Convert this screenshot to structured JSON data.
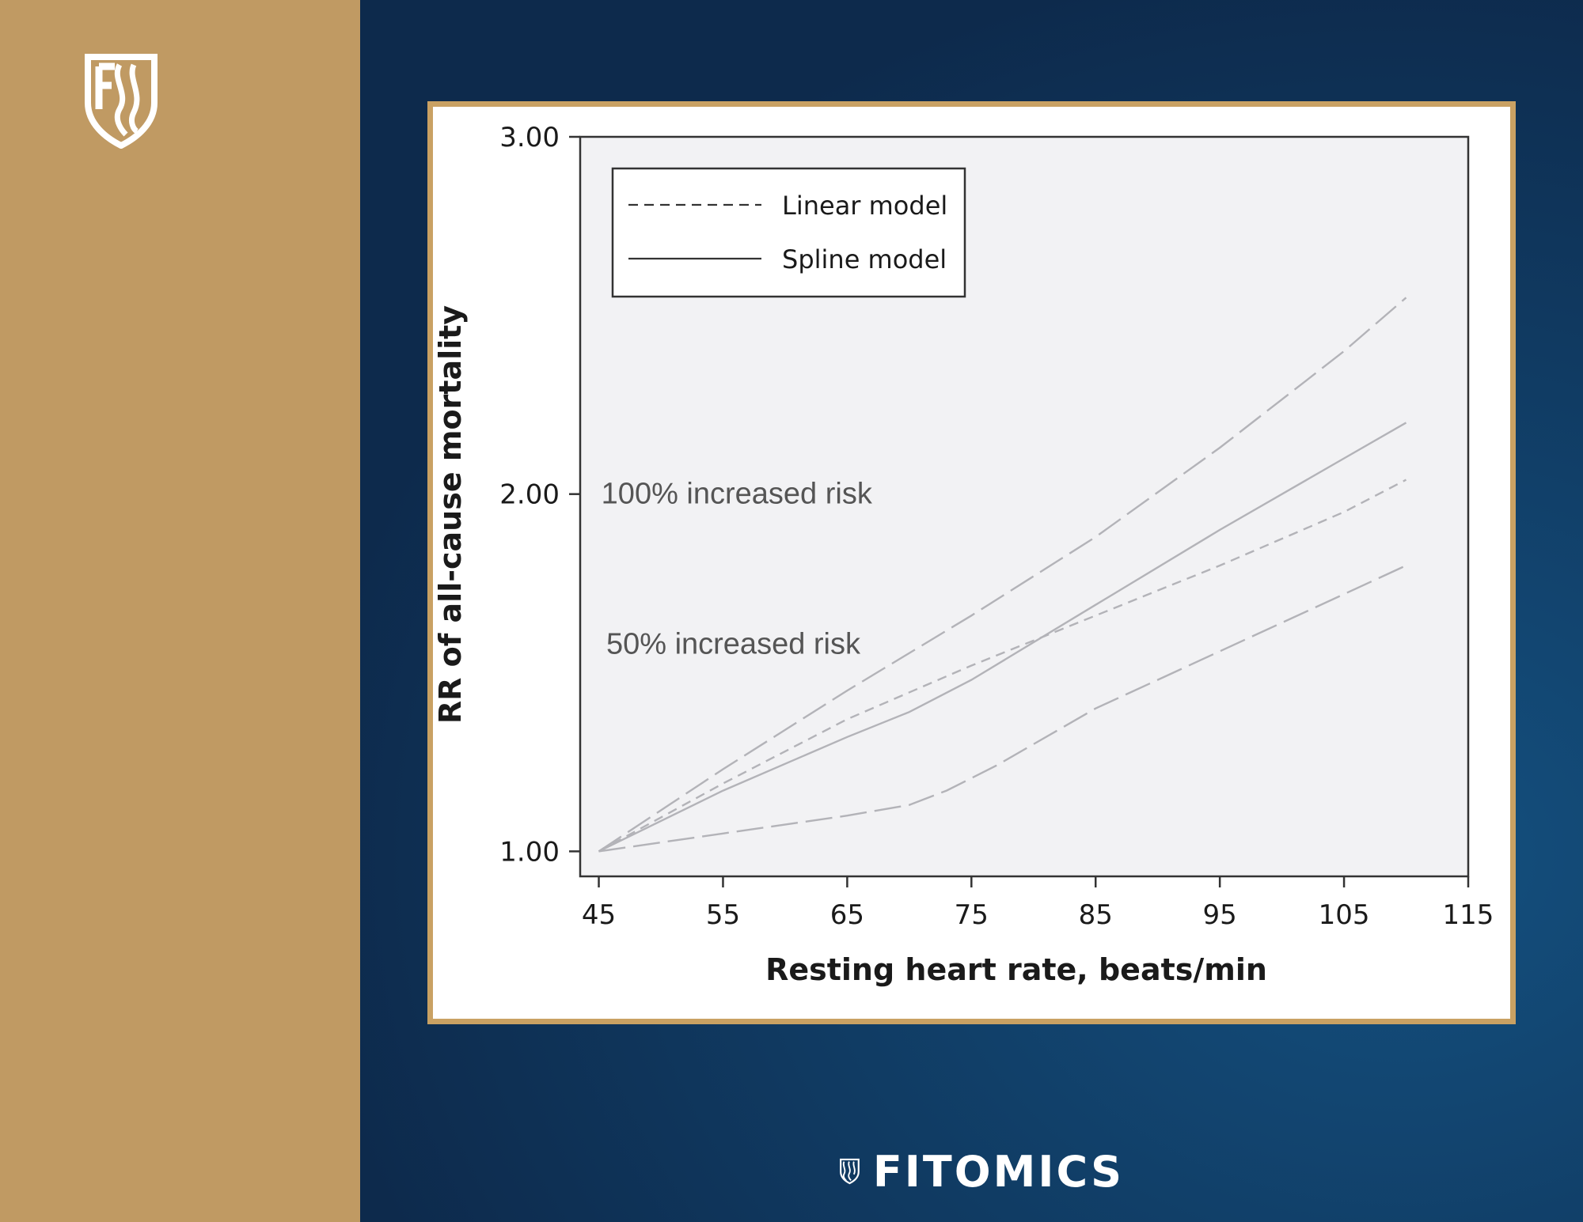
{
  "colors": {
    "sidebar": "#c09a63",
    "background_dark": "#0d2a4c",
    "background_light": "#14507f",
    "frame": "#c9a163",
    "plot_bg": "#f2f2f4",
    "line": "#b3b3b8",
    "text": "#1a1a1a",
    "annotation": "#555555",
    "logo": "#ffffff"
  },
  "sidebar": {
    "logo_icon": "fitomics-shield-icon"
  },
  "footer": {
    "brand": "FITOMICS",
    "logo_icon": "fitomics-shield-icon"
  },
  "chart_data": {
    "type": "line",
    "xlabel": "Resting heart rate, beats/min",
    "ylabel": "RR of all-cause mortality",
    "xlim": [
      43.5,
      115
    ],
    "xticks": [
      "45",
      "55",
      "65",
      "75",
      "85",
      "95",
      "105",
      "115"
    ],
    "ylim": [
      0.93,
      3.0
    ],
    "yticks": [
      "1.00",
      "2.00",
      "3.00"
    ],
    "ytick_values": [
      1.0,
      2.0,
      3.0
    ],
    "grid": false,
    "legend": {
      "placement": "top-left",
      "entries": [
        {
          "label": "Linear model",
          "style": "dashed"
        },
        {
          "label": "Spline model",
          "style": "solid"
        }
      ]
    },
    "annotations": [
      {
        "text": "100% increased risk",
        "x": 45.2,
        "y": 2.0
      },
      {
        "text": "50% increased risk",
        "x": 45.6,
        "y": 1.58
      }
    ],
    "series": [
      {
        "name": "Linear model",
        "style": "dashed",
        "x": [
          45,
          55,
          65,
          75,
          85,
          95,
          105,
          110
        ],
        "y": [
          1.0,
          1.19,
          1.37,
          1.52,
          1.66,
          1.8,
          1.95,
          2.04
        ]
      },
      {
        "name": "Linear model upper CI",
        "style": "long-dash",
        "x": [
          45,
          55,
          65,
          75,
          85,
          95,
          105,
          110
        ],
        "y": [
          1.0,
          1.23,
          1.45,
          1.66,
          1.88,
          2.13,
          2.4,
          2.55
        ]
      },
      {
        "name": "Linear model lower CI",
        "style": "long-dash",
        "x": [
          45,
          55,
          65,
          70,
          73,
          77,
          85,
          95,
          105,
          110
        ],
        "y": [
          1.0,
          1.05,
          1.1,
          1.13,
          1.17,
          1.24,
          1.4,
          1.56,
          1.72,
          1.8
        ]
      },
      {
        "name": "Spline model",
        "style": "solid",
        "x": [
          45,
          55,
          65,
          70,
          75,
          85,
          95,
          105,
          110
        ],
        "y": [
          1.0,
          1.17,
          1.32,
          1.39,
          1.48,
          1.69,
          1.9,
          2.1,
          2.2
        ]
      }
    ]
  }
}
